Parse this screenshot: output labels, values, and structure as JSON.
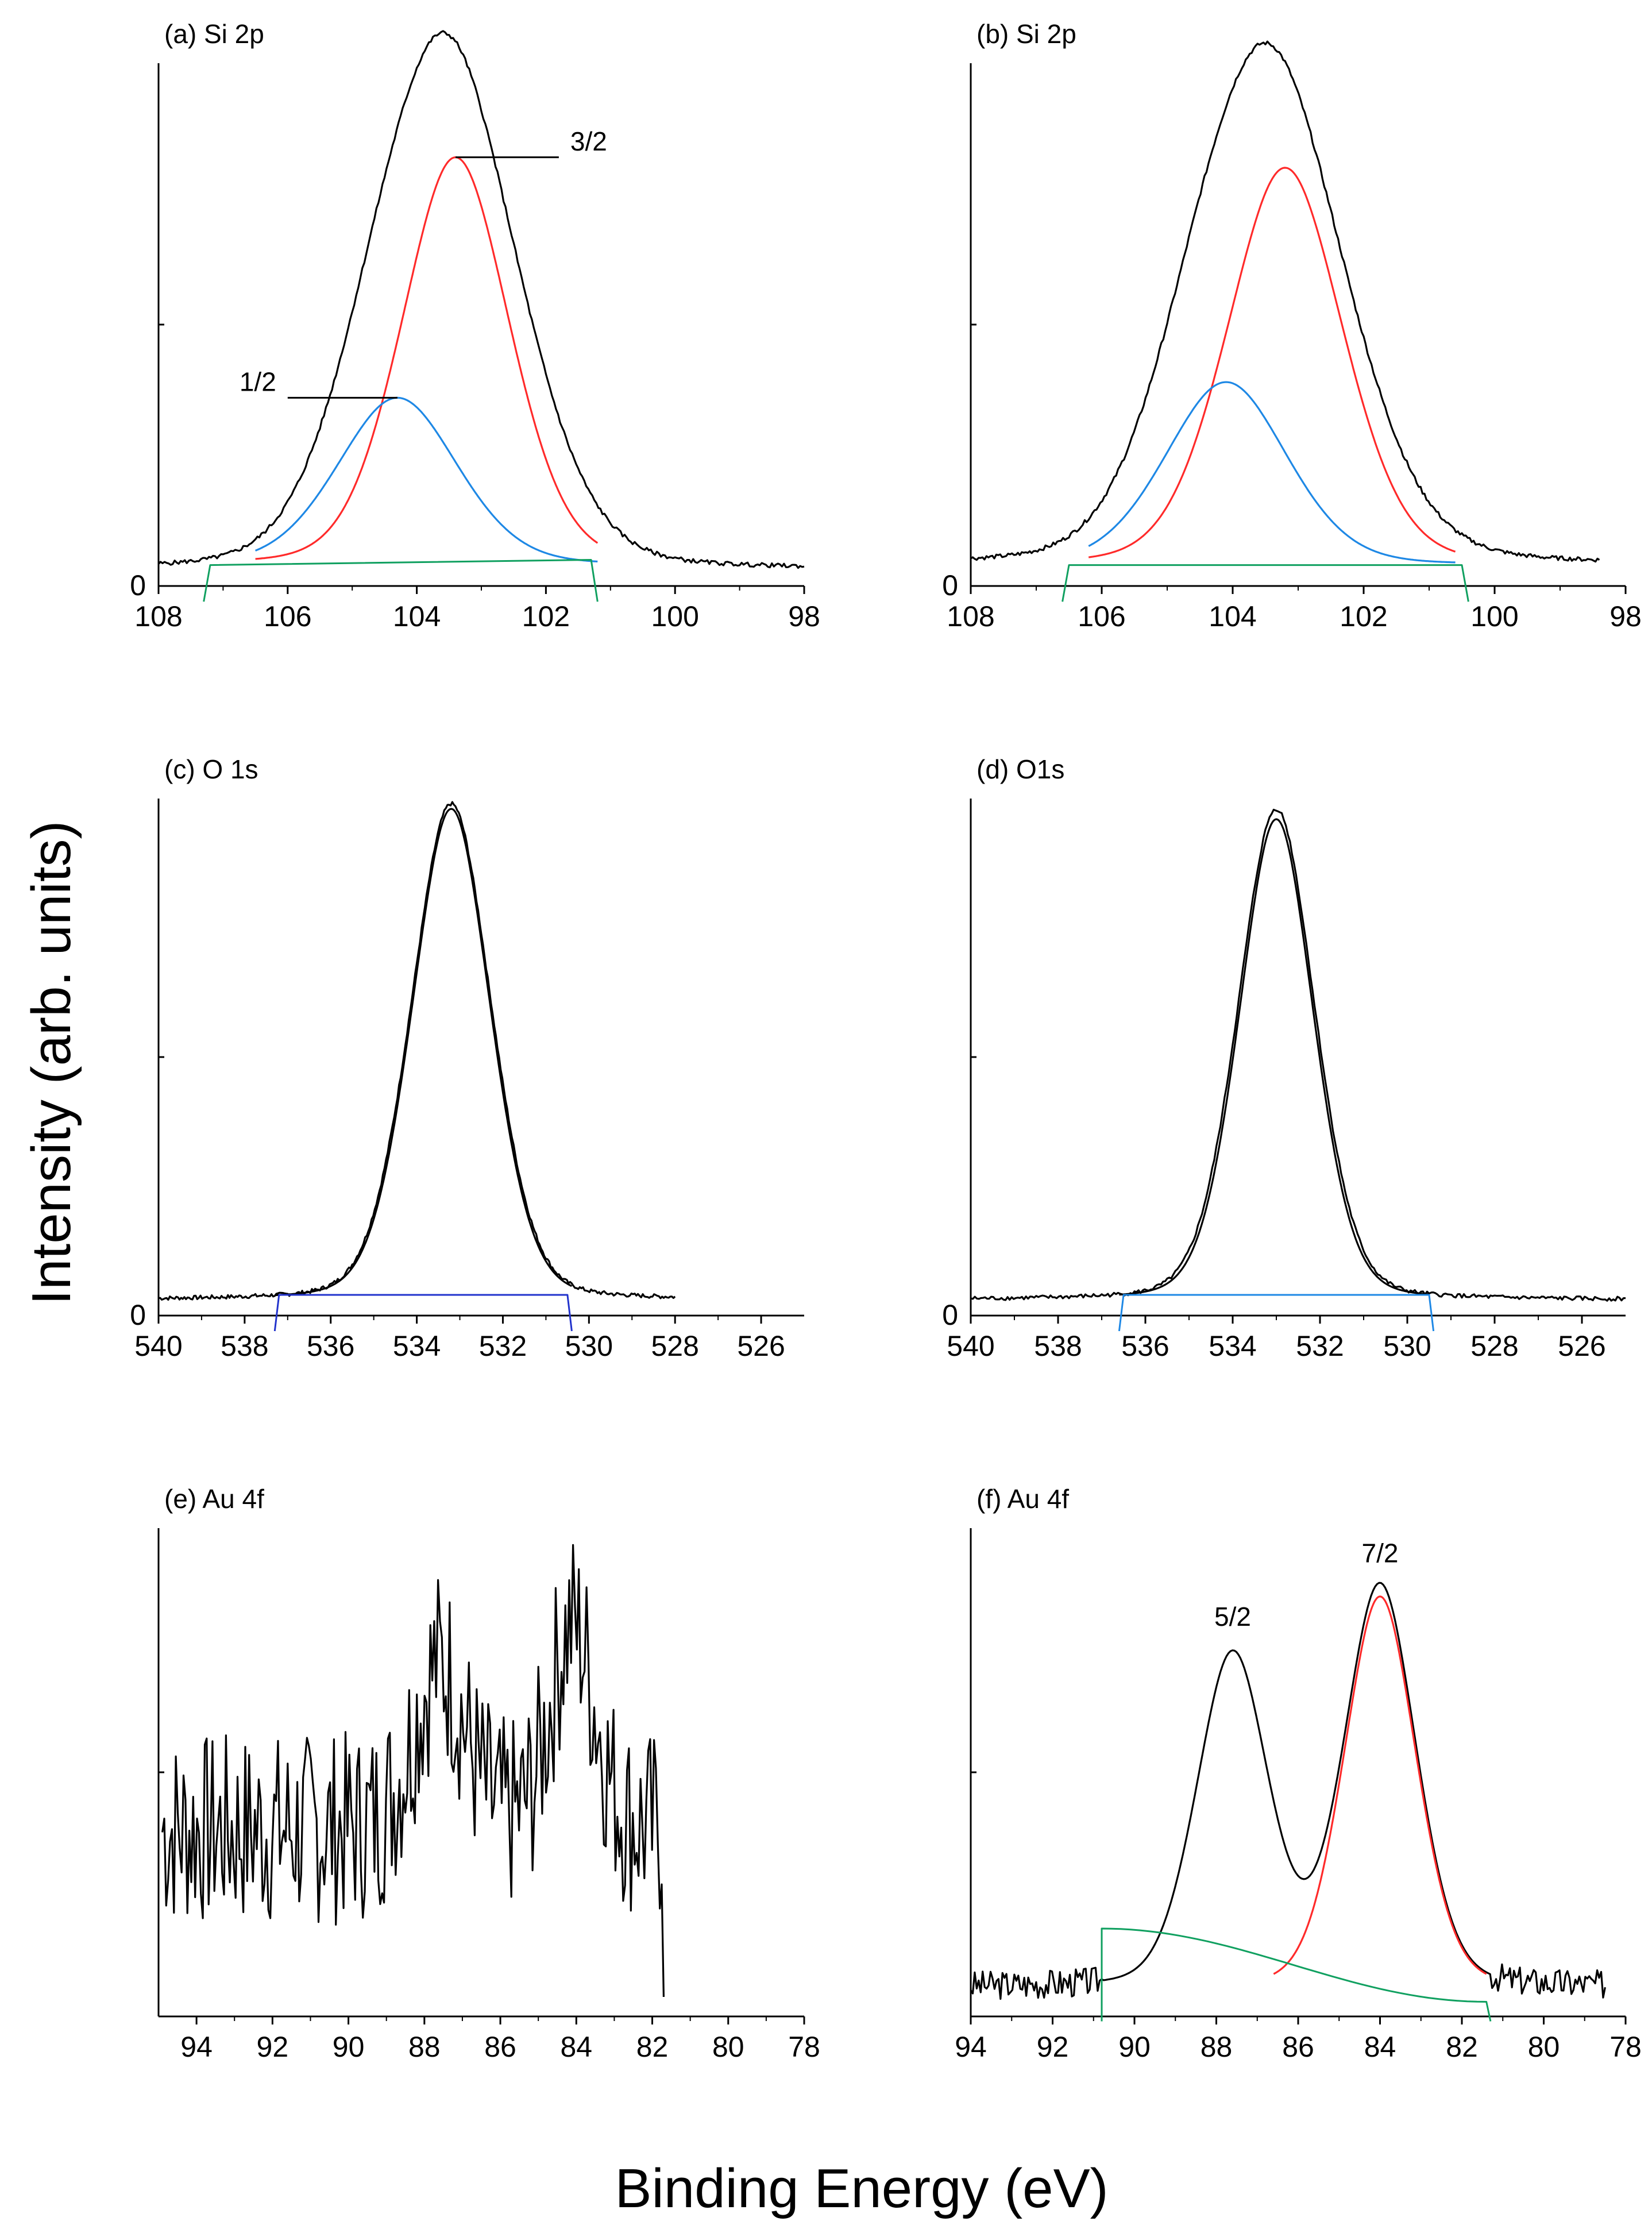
{
  "figure": {
    "y_axis_title": "Intensity (arb. units)",
    "x_axis_title": "Binding Energy (eV)"
  },
  "colors": {
    "envelope": "#000000",
    "comp_a": "#ff2a2a",
    "comp_b": "#1e88e5",
    "background": "#10a060",
    "bg_blue": "#2233cc"
  },
  "chart_data": [
    {
      "id": "a",
      "type": "line",
      "title": "(a) Si 2p",
      "xlabel": "Binding Energy (eV)",
      "ylabel": "Intensity (arb. units)",
      "xlim": [
        108,
        98
      ],
      "ylim": [
        0,
        100
      ],
      "x_ticks": [
        108,
        106,
        104,
        102,
        100,
        98
      ],
      "show_zero": true,
      "zero_label": "0",
      "series": [
        {
          "name": "envelope",
          "kind": "peaks",
          "color": "#000000",
          "x_range": [
            108,
            98
          ],
          "baseline": 3,
          "peaks": [
            {
              "center": 103.5,
              "amp": 96,
              "width": 1.1
            },
            {
              "center": 104.6,
              "amp": 14,
              "width": 0.9
            }
          ]
        },
        {
          "name": "3/2 component",
          "kind": "peaks",
          "color": "#ff2a2a",
          "x_range": [
            106.5,
            101.2
          ],
          "baseline": 4,
          "peaks": [
            {
              "center": 103.4,
              "amp": 78,
              "width": 0.85
            }
          ]
        },
        {
          "name": "1/2 component",
          "kind": "peaks",
          "color": "#1e88e5",
          "x_range": [
            106.5,
            101.2
          ],
          "baseline": 4,
          "peaks": [
            {
              "center": 104.3,
              "amp": 32,
              "width": 0.95
            }
          ]
        },
        {
          "name": "background",
          "kind": "bg",
          "color": "#10a060",
          "x": [
            107.3,
            107.2,
            101.3,
            101.2
          ],
          "y": [
            -3,
            4,
            5,
            -3
          ]
        }
      ],
      "annotations": [
        {
          "text": "3/2",
          "x": 103.4,
          "y": 82,
          "tx": 101.8,
          "ty": 87
        },
        {
          "text": "1/2",
          "x": 104.3,
          "y": 36,
          "tx": 106.0,
          "ty": 36
        }
      ]
    },
    {
      "id": "b",
      "type": "line",
      "title": "(b) Si 2p",
      "xlabel": "Binding Energy (eV)",
      "ylabel": "Intensity (arb. units)",
      "xlim": [
        108,
        98
      ],
      "ylim": [
        0,
        100
      ],
      "x_ticks": [
        108,
        106,
        104,
        102,
        100,
        98
      ],
      "show_zero": true,
      "zero_label": "0",
      "series": [
        {
          "name": "envelope",
          "kind": "peaks",
          "color": "#000000",
          "x_range": [
            108,
            98.4
          ],
          "baseline": 4,
          "peaks": [
            {
              "center": 103.4,
              "amp": 93,
              "width": 1.15
            },
            {
              "center": 104.5,
              "amp": 14,
              "width": 0.9
            }
          ]
        },
        {
          "name": "3/2 component",
          "kind": "peaks",
          "color": "#ff2a2a",
          "x_range": [
            106.2,
            100.6
          ],
          "baseline": 4,
          "peaks": [
            {
              "center": 103.2,
              "amp": 76,
              "width": 0.9
            }
          ]
        },
        {
          "name": "1/2 component",
          "kind": "peaks",
          "color": "#1e88e5",
          "x_range": [
            106.2,
            100.6
          ],
          "baseline": 4,
          "peaks": [
            {
              "center": 104.1,
              "amp": 35,
              "width": 0.95
            }
          ]
        },
        {
          "name": "background",
          "kind": "bg",
          "color": "#10a060",
          "x": [
            106.6,
            106.5,
            100.5,
            100.4
          ],
          "y": [
            -3,
            4,
            4,
            -3
          ]
        }
      ],
      "annotations": []
    },
    {
      "id": "c",
      "type": "line",
      "title": "(c) O 1s",
      "xlabel": "Binding Energy (eV)",
      "ylabel": "Intensity (arb. units)",
      "xlim": [
        540,
        525
      ],
      "ylim": [
        0,
        100
      ],
      "x_ticks": [
        540,
        538,
        536,
        534,
        532,
        530,
        528,
        526
      ],
      "show_zero": true,
      "zero_label": "0",
      "series": [
        {
          "name": "envelope",
          "kind": "peaks",
          "color": "#000000",
          "x_range": [
            540,
            528
          ],
          "baseline": 3,
          "peaks": [
            {
              "center": 533.2,
              "amp": 96,
              "width": 0.95
            }
          ]
        },
        {
          "name": "fit",
          "kind": "peaks",
          "color": "#000000",
          "x_range": [
            537.3,
            530.4
          ],
          "baseline": 3,
          "peaks": [
            {
              "center": 533.2,
              "amp": 95,
              "width": 0.93
            }
          ]
        },
        {
          "name": "background",
          "kind": "bg",
          "color": "#2233cc",
          "x": [
            537.3,
            537.2,
            530.5,
            530.4
          ],
          "y": [
            -3,
            4,
            4,
            -3
          ]
        }
      ],
      "annotations": []
    },
    {
      "id": "d",
      "type": "line",
      "title": "(d) O1s",
      "xlabel": "Binding Energy (eV)",
      "ylabel": "Intensity (arb. units)",
      "xlim": [
        540,
        525
      ],
      "ylim": [
        0,
        100
      ],
      "x_ticks": [
        540,
        538,
        536,
        534,
        532,
        530,
        528,
        526
      ],
      "show_zero": true,
      "zero_label": "0",
      "series": [
        {
          "name": "envelope",
          "kind": "peaks",
          "color": "#000000",
          "x_range": [
            540,
            525
          ],
          "baseline": 3,
          "peaks": [
            {
              "center": 533.0,
              "amp": 95,
              "width": 0.9
            }
          ]
        },
        {
          "name": "fit",
          "kind": "peaks",
          "color": "#000000",
          "x_range": [
            536.6,
            529.5
          ],
          "baseline": 3,
          "peaks": [
            {
              "center": 533.0,
              "amp": 93,
              "width": 0.87
            }
          ]
        },
        {
          "name": "background",
          "kind": "bg",
          "color": "#1e88e5",
          "x": [
            536.6,
            536.5,
            529.5,
            529.4
          ],
          "y": [
            -3,
            4,
            4,
            -3
          ]
        }
      ],
      "annotations": []
    },
    {
      "id": "e",
      "type": "line",
      "title": "(e) Au 4f",
      "xlabel": "Binding Energy (eV)",
      "ylabel": "Intensity (arb. units)",
      "xlim": [
        95,
        78
      ],
      "ylim": [
        0,
        100
      ],
      "x_ticks": [
        94,
        92,
        90,
        88,
        86,
        84,
        82,
        80,
        78
      ],
      "show_zero": false,
      "zero_label": "",
      "series": [
        {
          "name": "noisy spectrum",
          "kind": "noise",
          "color": "#000000",
          "x_range": [
            94.9,
            81.7
          ],
          "baseline": 38,
          "noise": 20,
          "seed": 7,
          "peaks": [
            {
              "center": 87.6,
              "amp": 34,
              "width": 0.7
            },
            {
              "center": 84.1,
              "amp": 42,
              "width": 0.6
            }
          ],
          "tail_drop": true
        }
      ],
      "annotations": []
    },
    {
      "id": "f",
      "type": "line",
      "title": "(f) Au 4f",
      "xlabel": "Binding Energy (eV)",
      "ylabel": "Intensity (arb. units)",
      "xlim": [
        94,
        78
      ],
      "ylim": [
        0,
        100
      ],
      "x_ticks": [
        94,
        92,
        90,
        88,
        86,
        84,
        82,
        80,
        78
      ],
      "show_zero": false,
      "zero_label": "",
      "series": [
        {
          "name": "envelope",
          "kind": "peaks",
          "color": "#000000",
          "x_range": [
            94,
            78.5
          ],
          "baseline": 6,
          "noise": 3,
          "seed": 3,
          "noise_until": 90.8,
          "noise_from": 81.3,
          "peaks": [
            {
              "center": 87.6,
              "amp": 68,
              "width": 0.9
            },
            {
              "center": 84.0,
              "amp": 82,
              "width": 0.9
            }
          ]
        },
        {
          "name": "7/2 component",
          "kind": "peaks",
          "color": "#ff2a2a",
          "x_range": [
            86.6,
            81.4
          ],
          "baseline": 6,
          "peaks": [
            {
              "center": 84.0,
              "amp": 80,
              "width": 0.9
            }
          ]
        },
        {
          "name": "background",
          "kind": "bg",
          "color": "#10a060",
          "x": [
            90.8,
            90.8,
            81.4,
            81.3
          ],
          "y": [
            -1,
            18,
            3,
            -1
          ]
        }
      ],
      "annotations": [
        {
          "text": "5/2",
          "x": 87.6,
          "y": 80
        },
        {
          "text": "7/2",
          "x": 84.0,
          "y": 93
        }
      ]
    }
  ]
}
